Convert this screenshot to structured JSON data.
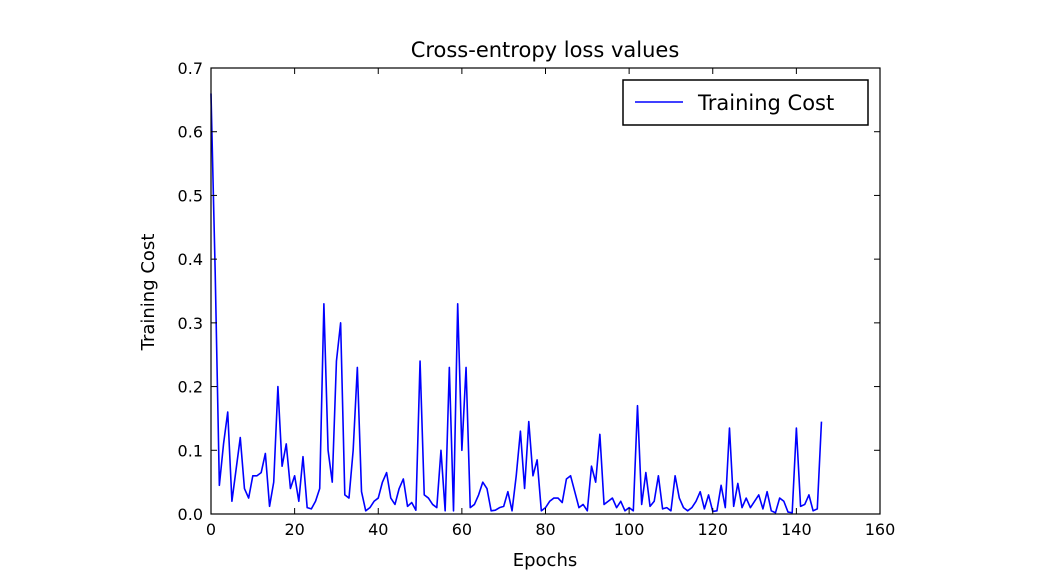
{
  "chart_data": {
    "type": "line",
    "title": "Cross-entropy loss values",
    "xlabel": "Epochs",
    "ylabel": "Training Cost",
    "xlim": [
      0,
      160
    ],
    "ylim": [
      0.0,
      0.7
    ],
    "xticks": [
      0,
      20,
      40,
      60,
      80,
      100,
      120,
      140,
      160
    ],
    "xtick_labels": [
      "0",
      "20",
      "40",
      "60",
      "80",
      "100",
      "120",
      "140",
      "160"
    ],
    "yticks": [
      0.0,
      0.1,
      0.2,
      0.3,
      0.4,
      0.5,
      0.6,
      0.7
    ],
    "ytick_labels": [
      "0.0",
      "0.1",
      "0.2",
      "0.3",
      "0.4",
      "0.5",
      "0.6",
      "0.7"
    ],
    "grid": false,
    "legend": "upper right",
    "series": [
      {
        "name": "Training Cost",
        "color": "#0000ff",
        "values": [
          0.66,
          0.38,
          0.045,
          0.11,
          0.16,
          0.02,
          0.07,
          0.12,
          0.04,
          0.025,
          0.06,
          0.06,
          0.065,
          0.095,
          0.012,
          0.05,
          0.2,
          0.075,
          0.11,
          0.04,
          0.06,
          0.02,
          0.09,
          0.01,
          0.008,
          0.02,
          0.04,
          0.33,
          0.1,
          0.05,
          0.24,
          0.3,
          0.03,
          0.025,
          0.1,
          0.23,
          0.035,
          0.005,
          0.01,
          0.02,
          0.025,
          0.05,
          0.065,
          0.025,
          0.015,
          0.04,
          0.055,
          0.012,
          0.018,
          0.006,
          0.24,
          0.03,
          0.025,
          0.015,
          0.01,
          0.1,
          0.005,
          0.23,
          0.005,
          0.33,
          0.1,
          0.23,
          0.01,
          0.015,
          0.03,
          0.05,
          0.04,
          0.005,
          0.006,
          0.01,
          0.012,
          0.035,
          0.005,
          0.06,
          0.13,
          0.04,
          0.145,
          0.06,
          0.085,
          0.005,
          0.01,
          0.02,
          0.025,
          0.025,
          0.018,
          0.055,
          0.06,
          0.035,
          0.01,
          0.015,
          0.005,
          0.075,
          0.05,
          0.125,
          0.015,
          0.02,
          0.025,
          0.01,
          0.02,
          0.005,
          0.01,
          0.005,
          0.17,
          0.015,
          0.065,
          0.012,
          0.02,
          0.06,
          0.008,
          0.01,
          0.005,
          0.06,
          0.025,
          0.01,
          0.005,
          0.01,
          0.02,
          0.035,
          0.008,
          0.03,
          0.004,
          0.005,
          0.045,
          0.01,
          0.135,
          0.012,
          0.048,
          0.01,
          0.025,
          0.01,
          0.02,
          0.03,
          0.008,
          0.035,
          0.005,
          0.002,
          0.025,
          0.02,
          0.003,
          0.002,
          0.135,
          0.012,
          0.015,
          0.03,
          0.005,
          0.008,
          0.145
        ],
        "x_start": 0,
        "x_step": 1
      }
    ]
  }
}
